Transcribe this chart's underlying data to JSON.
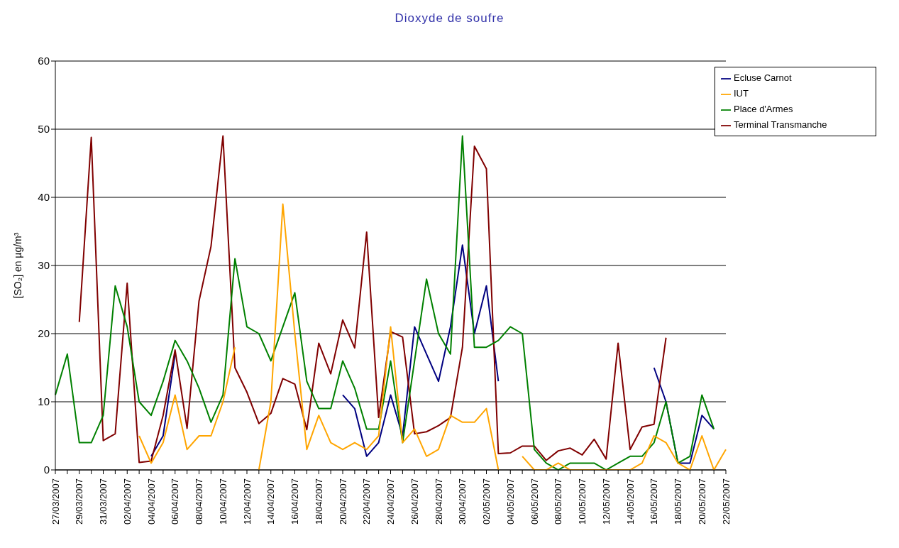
{
  "chart_data": {
    "type": "line",
    "title": "Dioxyde de soufre",
    "ylabel": "[SO₂] en µg/m³",
    "categories": [
      "27/03/2007",
      null,
      "29/03/2007",
      null,
      "31/03/2007",
      null,
      "02/04/2007",
      null,
      "04/04/2007",
      null,
      "06/04/2007",
      null,
      "08/04/2007",
      null,
      "10/04/2007",
      null,
      "12/04/2007",
      null,
      "14/04/2007",
      null,
      "16/04/2007",
      null,
      "18/04/2007",
      null,
      "20/04/2007",
      null,
      "22/04/2007",
      null,
      "24/04/2007",
      null,
      "26/04/2007",
      null,
      "28/04/2007",
      null,
      "30/04/2007",
      null,
      "02/05/2007",
      null,
      "04/05/2007",
      null,
      "06/05/2007",
      null,
      "08/05/2007",
      null,
      "10/05/2007",
      null,
      "12/05/2007",
      null,
      "14/05/2007",
      null,
      "16/05/2007",
      null,
      "18/05/2007",
      null,
      "20/05/2007",
      null,
      "22/05/2007"
    ],
    "series": [
      {
        "name": "Ecluse Carnot",
        "color": "#000080",
        "values": [
          null,
          null,
          null,
          null,
          null,
          null,
          null,
          null,
          2,
          5,
          17,
          null,
          null,
          null,
          null,
          null,
          null,
          null,
          null,
          null,
          null,
          null,
          null,
          null,
          11,
          9,
          2,
          4,
          11,
          5,
          21,
          17,
          13,
          21,
          33,
          20,
          27,
          13,
          null,
          null,
          null,
          null,
          null,
          null,
          null,
          null,
          null,
          null,
          null,
          null,
          15,
          10,
          1,
          1,
          8,
          6,
          null
        ]
      },
      {
        "name": "Terminal Transmanche",
        "color": "#800000",
        "values": [
          null,
          null,
          21.7,
          48.8,
          4.3,
          5.3,
          27.4,
          1.1,
          1.3,
          8,
          17.6,
          6.1,
          24.8,
          32.8,
          49,
          15,
          11.4,
          6.8,
          8.3,
          13.4,
          12.6,
          5.9,
          18.6,
          14.1,
          22,
          17.9,
          34.9,
          7.7,
          20.3,
          19.5,
          5.3,
          5.6,
          6.5,
          7.7,
          18,
          47.5,
          44.2,
          2.4,
          2.5,
          3.5,
          3.5,
          1.4,
          2.8,
          3.2,
          2.2,
          4.5,
          1.6,
          18.6,
          3,
          6.3,
          6.7,
          19.4,
          null,
          null,
          null,
          null,
          null
        ]
      },
      {
        "name": "Place d'Armes",
        "color": "#008000",
        "values": [
          11,
          17,
          4,
          4,
          8,
          27,
          21,
          10,
          8,
          13,
          19,
          16,
          12,
          7,
          11,
          31,
          21,
          20,
          16,
          21,
          26,
          13,
          9,
          9,
          16,
          12,
          6,
          6,
          16,
          4,
          16,
          28,
          20,
          17,
          49,
          18,
          18,
          19,
          21,
          20,
          3,
          1,
          0,
          1,
          1,
          1,
          0,
          1,
          2,
          2,
          4,
          10,
          1,
          2,
          11,
          6,
          null
        ]
      },
      {
        "name": "IUT",
        "color": "#ffa500",
        "values": [
          null,
          null,
          null,
          null,
          null,
          null,
          null,
          5,
          1,
          4,
          11,
          3,
          5,
          5,
          10,
          18,
          null,
          0,
          10,
          39,
          20,
          3,
          8,
          4,
          3,
          4,
          3,
          5,
          21,
          4,
          6,
          2,
          3,
          8,
          7,
          7,
          9,
          0,
          null,
          2,
          0,
          0,
          1,
          0,
          0,
          0,
          0,
          0,
          0,
          1,
          5,
          4,
          1,
          0,
          5,
          0,
          3
        ]
      }
    ],
    "ylim": [
      0,
      60
    ],
    "yticks": [
      0,
      10,
      20,
      30,
      40,
      50,
      60
    ],
    "grid": "y",
    "legend": "top right"
  }
}
